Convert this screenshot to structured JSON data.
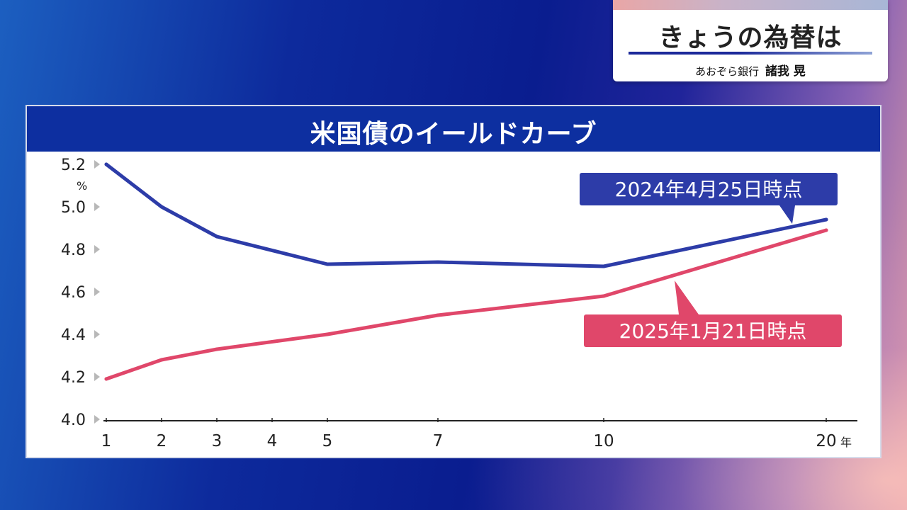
{
  "caption": {
    "title": "きょうの為替は",
    "subtitle_org": "あおぞら銀行",
    "subtitle_name": "諸我 晃"
  },
  "chart_data": {
    "type": "line",
    "title": "米国債のイールドカーブ",
    "ylabel": "%",
    "xlabel_unit": "年",
    "ylim": [
      4.0,
      5.2
    ],
    "y_ticks": [
      "5.2",
      "5.0",
      "4.8",
      "4.6",
      "4.4",
      "4.2",
      "4.0"
    ],
    "x_ticks": [
      "1",
      "2",
      "3",
      "4",
      "5",
      "7",
      "10",
      "20"
    ],
    "series": [
      {
        "name": "2024年4月25日時点",
        "color": "#2d3ca8",
        "x": [
          1,
          2,
          3,
          5,
          7,
          10,
          20
        ],
        "values": [
          5.2,
          5.0,
          4.86,
          4.73,
          4.74,
          4.72,
          4.94
        ]
      },
      {
        "name": "2025年1月21日時点",
        "color": "#e0476a",
        "x": [
          1,
          2,
          3,
          5,
          7,
          10,
          20
        ],
        "values": [
          4.19,
          4.28,
          4.33,
          4.4,
          4.49,
          4.58,
          4.89
        ]
      }
    ]
  }
}
